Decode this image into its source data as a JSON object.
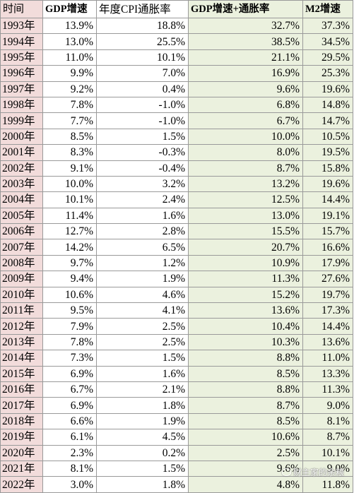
{
  "table": {
    "headers": {
      "year": "时间",
      "gdp": "GDP增速",
      "cpi": "年度CPI通胀率",
      "sum": "GDP增速+通胀率",
      "m2": "M2增速"
    },
    "colors": {
      "year_column_bg": "#f2dcdb",
      "sum_m2_bg": "#ebf1de",
      "grid": "#9a9a9a"
    },
    "rows": [
      {
        "year": "1993年",
        "gdp": "13.9%",
        "cpi": "18.8%",
        "sum": "32.7%",
        "m2": "37.3%"
      },
      {
        "year": "1994年",
        "gdp": "13.0%",
        "cpi": "25.5%",
        "sum": "38.5%",
        "m2": "34.5%"
      },
      {
        "year": "1995年",
        "gdp": "11.0%",
        "cpi": "10.1%",
        "sum": "21.1%",
        "m2": "29.5%"
      },
      {
        "year": "1996年",
        "gdp": "9.9%",
        "cpi": "7.0%",
        "sum": "16.9%",
        "m2": "25.3%"
      },
      {
        "year": "1997年",
        "gdp": "9.2%",
        "cpi": "0.4%",
        "sum": "9.6%",
        "m2": "19.6%"
      },
      {
        "year": "1998年",
        "gdp": "7.8%",
        "cpi": "-1.0%",
        "sum": "6.8%",
        "m2": "14.8%"
      },
      {
        "year": "1999年",
        "gdp": "7.7%",
        "cpi": "-1.0%",
        "sum": "6.7%",
        "m2": "14.7%"
      },
      {
        "year": "2000年",
        "gdp": "8.5%",
        "cpi": "1.5%",
        "sum": "10.0%",
        "m2": "10.5%"
      },
      {
        "year": "2001年",
        "gdp": "8.3%",
        "cpi": "-0.3%",
        "sum": "8.0%",
        "m2": "19.5%"
      },
      {
        "year": "2002年",
        "gdp": "9.1%",
        "cpi": "-0.4%",
        "sum": "8.7%",
        "m2": "15.8%"
      },
      {
        "year": "2003年",
        "gdp": "10.0%",
        "cpi": "3.2%",
        "sum": "13.2%",
        "m2": "19.6%"
      },
      {
        "year": "2004年",
        "gdp": "10.1%",
        "cpi": "2.4%",
        "sum": "12.5%",
        "m2": "14.4%"
      },
      {
        "year": "2005年",
        "gdp": "11.4%",
        "cpi": "1.6%",
        "sum": "13.0%",
        "m2": "19.1%"
      },
      {
        "year": "2006年",
        "gdp": "12.7%",
        "cpi": "2.8%",
        "sum": "15.5%",
        "m2": "15.7%"
      },
      {
        "year": "2007年",
        "gdp": "14.2%",
        "cpi": "6.5%",
        "sum": "20.7%",
        "m2": "16.6%"
      },
      {
        "year": "2008年",
        "gdp": "9.7%",
        "cpi": "1.2%",
        "sum": "10.9%",
        "m2": "17.9%"
      },
      {
        "year": "2009年",
        "gdp": "9.4%",
        "cpi": "1.9%",
        "sum": "11.3%",
        "m2": "27.6%"
      },
      {
        "year": "2010年",
        "gdp": "10.6%",
        "cpi": "4.6%",
        "sum": "15.2%",
        "m2": "19.7%"
      },
      {
        "year": "2011年",
        "gdp": "9.5%",
        "cpi": "4.1%",
        "sum": "13.6%",
        "m2": "17.3%"
      },
      {
        "year": "2012年",
        "gdp": "7.9%",
        "cpi": "2.5%",
        "sum": "10.4%",
        "m2": "14.4%"
      },
      {
        "year": "2013年",
        "gdp": "7.8%",
        "cpi": "2.5%",
        "sum": "10.3%",
        "m2": "13.6%"
      },
      {
        "year": "2014年",
        "gdp": "7.3%",
        "cpi": "1.5%",
        "sum": "8.8%",
        "m2": "11.0%"
      },
      {
        "year": "2015年",
        "gdp": "6.9%",
        "cpi": "1.6%",
        "sum": "8.5%",
        "m2": "13.3%"
      },
      {
        "year": "2016年",
        "gdp": "6.7%",
        "cpi": "2.1%",
        "sum": "8.8%",
        "m2": "11.3%"
      },
      {
        "year": "2017年",
        "gdp": "6.9%",
        "cpi": "1.8%",
        "sum": "8.7%",
        "m2": "9.0%"
      },
      {
        "year": "2018年",
        "gdp": "6.6%",
        "cpi": "1.9%",
        "sum": "8.5%",
        "m2": "8.1%"
      },
      {
        "year": "2019年",
        "gdp": "6.1%",
        "cpi": "4.5%",
        "sum": "10.6%",
        "m2": "8.7%"
      },
      {
        "year": "2020年",
        "gdp": "2.3%",
        "cpi": "0.2%",
        "sum": "2.5%",
        "m2": "10.1%"
      },
      {
        "year": "2021年",
        "gdp": "8.1%",
        "cpi": "1.5%",
        "sum": "9.6%",
        "m2": "9.0%"
      },
      {
        "year": "2022年",
        "gdp": "3.0%",
        "cpi": "1.8%",
        "sum": "4.8%",
        "m2": "11.8%"
      }
    ]
  },
  "watermark": {
    "text": "财主家的余粮",
    "icon": "wechat-icon"
  }
}
